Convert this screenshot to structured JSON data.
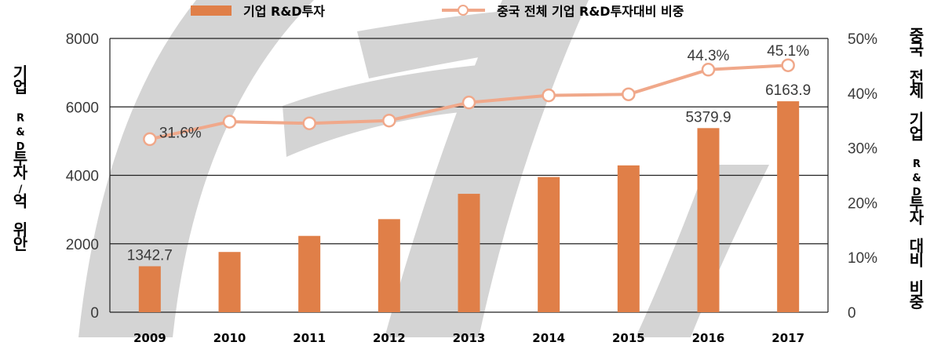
{
  "chart_data": {
    "type": "bar",
    "categories": [
      "2009",
      "2010",
      "2011",
      "2012",
      "2013",
      "2014",
      "2015",
      "2016",
      "2017"
    ],
    "series": [
      {
        "name": "기업 R&D투자",
        "kind": "bar",
        "axis": "left",
        "color": "#e07f48",
        "values": [
          1342.7,
          1760,
          2230,
          2720,
          3460,
          3950,
          4290,
          5379.9,
          6163.9
        ],
        "labels": [
          "1342.7",
          "",
          "",
          "",
          "",
          "",
          "",
          "5379.9",
          "6163.9"
        ]
      },
      {
        "name": "중국 전체 기업 R&D투자대비 비중",
        "kind": "line",
        "axis": "right",
        "color": "#f0a88a",
        "values": [
          31.6,
          34.8,
          34.5,
          35.0,
          38.3,
          39.6,
          39.8,
          44.3,
          45.1
        ],
        "labels": [
          "31.6%",
          "",
          "",
          "",
          "",
          "",
          "",
          "44.3%",
          "45.1%"
        ]
      }
    ],
    "ylabel": "기업 R&D투자/억 위안",
    "y2label": "중국 전체 기업 R&D투자 대비 비중",
    "ylim": [
      0,
      8000
    ],
    "y2lim": [
      0,
      50
    ],
    "yticks": [
      "0",
      "2000",
      "4000",
      "6000",
      "8000"
    ],
    "y2ticks": [
      "0",
      "10%",
      "20%",
      "30%",
      "40%",
      "50%"
    ],
    "grid": true,
    "legend_position": "top"
  }
}
